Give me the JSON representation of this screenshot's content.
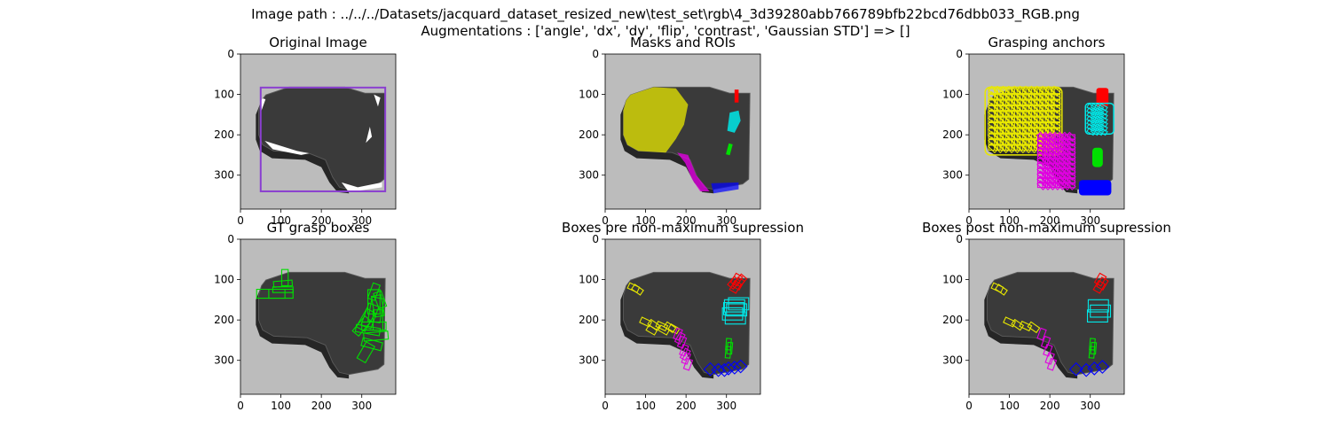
{
  "figure": {
    "suptitle_lines": [
      "Image path : ../../../Datasets/jacquard_dataset_resized_new\\test_set\\rgb\\4_3d39280abb766789bfb22bcd76dbb033_RGB.png",
      "Augmentations : ['angle', 'dx', 'dy', 'flip', 'contrast', 'Gaussian STD'] => []"
    ]
  },
  "axes": {
    "x_ticks": [
      "0",
      "100",
      "200",
      "300"
    ],
    "y_ticks": [
      "0",
      "100",
      "200",
      "300"
    ],
    "tick_values": [
      0,
      100,
      200,
      300
    ],
    "range": [
      0,
      384
    ]
  },
  "colors": {
    "background": "#bcbcbc",
    "object": "#3a3a3a",
    "object_edge": "#5a5a5a",
    "roi_box": "#8a3fd0",
    "yellow": "#e8e800",
    "magenta": "#e000e0",
    "cyan": "#00e8e8",
    "red": "#ff0000",
    "green": "#00e000",
    "blue": "#0000ff"
  },
  "panels": [
    {
      "id": "original",
      "title": "Original Image"
    },
    {
      "id": "masks",
      "title": "Masks and ROIs"
    },
    {
      "id": "anchors",
      "title": "Grasping anchors"
    },
    {
      "id": "gt",
      "title": "GT grasp boxes"
    },
    {
      "id": "pre-nms",
      "title": "Boxes pre non-maximum supression"
    },
    {
      "id": "post-nms",
      "title": "Boxes post non-maximum supression"
    }
  ]
}
